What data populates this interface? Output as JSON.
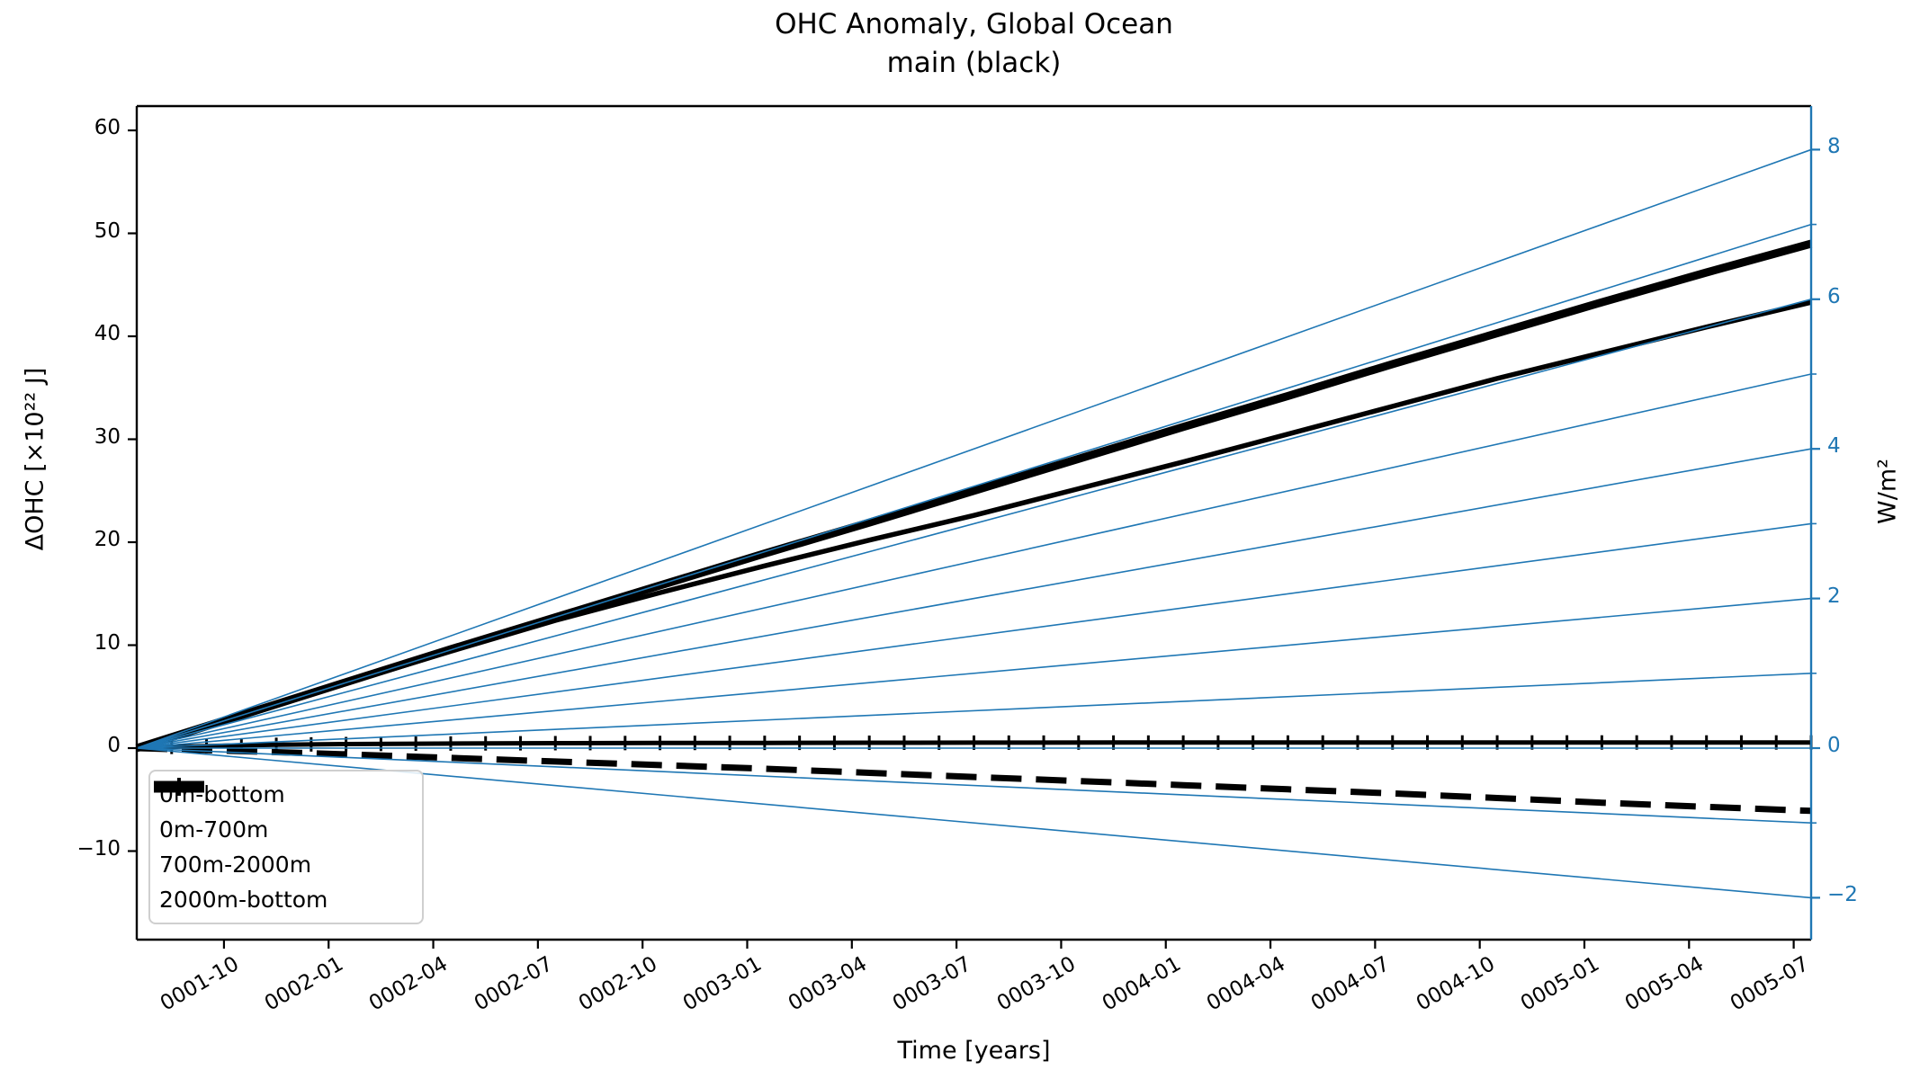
{
  "title": {
    "line1": "OHC Anomaly, Global Ocean",
    "line2": "main (black)"
  },
  "axes": {
    "x": {
      "label": "Time [years]",
      "tick_labels": [
        "0001-10",
        "0002-01",
        "0002-04",
        "0002-07",
        "0002-10",
        "0003-01",
        "0003-04",
        "0003-07",
        "0003-10",
        "0004-01",
        "0004-04",
        "0004-07",
        "0004-10",
        "0005-01",
        "0005-04",
        "0005-07"
      ],
      "tick_months": [
        2.5,
        5.5,
        8.5,
        11.5,
        14.5,
        17.5,
        20.5,
        23.5,
        26.5,
        29.5,
        32.5,
        35.5,
        38.5,
        41.5,
        44.5,
        47.5
      ],
      "range_months": [
        0,
        48
      ]
    },
    "y_left": {
      "label": "ΔOHC [×10²² J]",
      "tick_labels": [
        "60",
        "50",
        "40",
        "30",
        "20",
        "10",
        "0",
        "−10"
      ],
      "tick_values": [
        60,
        50,
        40,
        30,
        20,
        10,
        0,
        -10
      ],
      "range": [
        -18.6,
        62.4
      ],
      "color": "#000000"
    },
    "y_right": {
      "label": "W/m²",
      "tick_labels": [
        "8",
        "6",
        "4",
        "2",
        "0",
        "−2"
      ],
      "tick_values": [
        8,
        6,
        4,
        2,
        0,
        -2
      ],
      "minor_tick_values": [
        7,
        5,
        3,
        1,
        -1
      ],
      "range": [
        -2.56,
        8.58
      ],
      "color": "#1f77b4"
    }
  },
  "chart_data": {
    "type": "line",
    "title": "OHC Anomaly, Global Ocean\nmain (black)",
    "xlabel": "Time [years]",
    "ylabel_left": "ΔOHC [×10²² J]",
    "ylabel_right": "W/m²",
    "x_unit": "months since start (0001-07 to 0005-07)",
    "grid": false,
    "legend_position": "lower left",
    "series": [
      {
        "name": "0m-bottom",
        "color": "#000000",
        "style": "solid",
        "width": 9,
        "points": [
          [
            0,
            0
          ],
          [
            3,
            3.2
          ],
          [
            6,
            6.4
          ],
          [
            9,
            9.6
          ],
          [
            12,
            12.7
          ],
          [
            15,
            15.8
          ],
          [
            18,
            18.9
          ],
          [
            21,
            21.9
          ],
          [
            24,
            25.0
          ],
          [
            27,
            28.1
          ],
          [
            30,
            31.2
          ],
          [
            33,
            34.2
          ],
          [
            36,
            37.3
          ],
          [
            39,
            40.3
          ],
          [
            42,
            43.3
          ],
          [
            45,
            46.2
          ],
          [
            48,
            49.0
          ]
        ]
      },
      {
        "name": "0m-700m",
        "color": "#000000",
        "style": "solid",
        "width": 5.5,
        "points": [
          [
            0,
            0
          ],
          [
            3,
            3.15
          ],
          [
            6,
            6.3
          ],
          [
            9,
            9.4
          ],
          [
            12,
            12.4
          ],
          [
            15,
            15.1
          ],
          [
            18,
            17.7
          ],
          [
            21,
            20.2
          ],
          [
            24,
            22.6
          ],
          [
            27,
            25.2
          ],
          [
            30,
            27.8
          ],
          [
            33,
            30.5
          ],
          [
            36,
            33.2
          ],
          [
            39,
            35.9
          ],
          [
            42,
            38.4
          ],
          [
            45,
            40.9
          ],
          [
            48,
            43.3
          ]
        ]
      },
      {
        "name": "700m-2000m",
        "color": "#000000",
        "style": "dashed",
        "width": 7,
        "points": [
          [
            0,
            0
          ],
          [
            3,
            -0.3
          ],
          [
            6,
            -0.6
          ],
          [
            9,
            -0.95
          ],
          [
            12,
            -1.3
          ],
          [
            15,
            -1.65
          ],
          [
            18,
            -2.0
          ],
          [
            21,
            -2.4
          ],
          [
            24,
            -2.8
          ],
          [
            27,
            -3.2
          ],
          [
            30,
            -3.6
          ],
          [
            33,
            -4.0
          ],
          [
            36,
            -4.4
          ],
          [
            39,
            -4.85
          ],
          [
            42,
            -5.3
          ],
          [
            45,
            -5.7
          ],
          [
            48,
            -6.1
          ]
        ]
      },
      {
        "name": "2000m-bottom",
        "color": "#000000",
        "style": "solid-vbar-markers",
        "width": 5,
        "marker_every_months": 1,
        "points": [
          [
            0,
            0
          ],
          [
            1,
            0.12
          ],
          [
            2,
            0.2
          ],
          [
            3,
            0.27
          ],
          [
            4,
            0.32
          ],
          [
            5,
            0.36
          ],
          [
            6,
            0.39
          ],
          [
            8,
            0.43
          ],
          [
            10,
            0.46
          ],
          [
            12,
            0.48
          ],
          [
            15,
            0.5
          ],
          [
            18,
            0.51
          ],
          [
            21,
            0.52
          ],
          [
            24,
            0.53
          ],
          [
            28,
            0.54
          ],
          [
            32,
            0.54
          ],
          [
            36,
            0.55
          ],
          [
            40,
            0.55
          ],
          [
            44,
            0.55
          ],
          [
            48,
            0.55
          ]
        ]
      }
    ],
    "reference_lines": {
      "description": "straight lines from origin to constant heat-flux endpoints",
      "color": "#1f77b4",
      "width": 1.6,
      "values_w_m2": [
        -2,
        -1,
        0,
        1,
        2,
        3,
        4,
        5,
        6,
        7,
        8
      ],
      "left_units_per_w_m2_at_end": 7.266
    }
  },
  "legend": {
    "entries": [
      {
        "label": "0m-bottom"
      },
      {
        "label": "0m-700m"
      },
      {
        "label": "700m-2000m"
      },
      {
        "label": "2000m-bottom"
      }
    ]
  }
}
